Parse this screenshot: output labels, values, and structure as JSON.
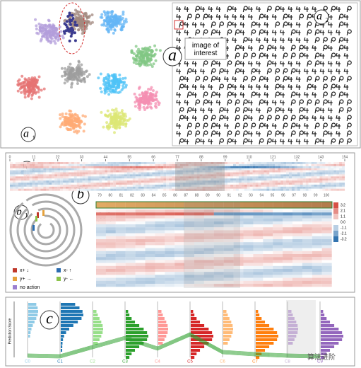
{
  "panels": [
    {
      "letter": "a"
    },
    {
      "letter": "a",
      "sub": "1"
    },
    {
      "letter": "a",
      "sub": "2"
    },
    {
      "letter": "b"
    },
    {
      "letter": "b",
      "sub": "1"
    },
    {
      "letter": "b",
      "sub": "2"
    },
    {
      "letter": "b",
      "sub": "3"
    },
    {
      "letter": "c"
    }
  ],
  "annotation": "image of interest",
  "timeline_ticks": [
    0,
    11,
    22,
    33,
    44,
    55,
    66,
    77,
    88,
    99,
    110,
    121,
    132,
    143,
    154
  ],
  "detail_ticks": [
    79,
    80,
    81,
    82,
    83,
    84,
    85,
    86,
    87,
    88,
    89,
    90,
    91,
    92,
    93,
    94,
    95,
    96,
    97,
    98,
    99,
    100
  ],
  "color_scale": [
    3.2,
    2.1,
    1.1,
    {
      "value": 0,
      "label": "0.0"
    },
    -1.1,
    -2.1,
    -3.2
  ],
  "actions": [
    {
      "label": "x+ ↓",
      "color": "#c0392b"
    },
    {
      "label": "x- ↑",
      "color": "#2b6cb0"
    },
    {
      "label": "y+ →",
      "color": "#e6a23c"
    },
    {
      "label": "y- ←",
      "color": "#8bc34a"
    },
    {
      "label": "no action",
      "color": "#9b7fd0"
    }
  ],
  "prediction_axis": "Prediction Score",
  "classes": [
    {
      "name": "C0",
      "color": "#8ecae6"
    },
    {
      "name": "C1",
      "color": "#1f77b4"
    },
    {
      "name": "C2",
      "color": "#98df8a"
    },
    {
      "name": "C3",
      "color": "#2ca02c"
    },
    {
      "name": "C4",
      "color": "#ff9896"
    },
    {
      "name": "C5",
      "color": "#d62728"
    },
    {
      "name": "C6",
      "color": "#ffbb78"
    },
    {
      "name": "C7",
      "color": "#ff7f0e"
    },
    {
      "name": "C8",
      "color": "#c5b0d5"
    },
    {
      "name": "C9",
      "color": "#9467bd"
    }
  ],
  "watermark": "算法进阶"
}
